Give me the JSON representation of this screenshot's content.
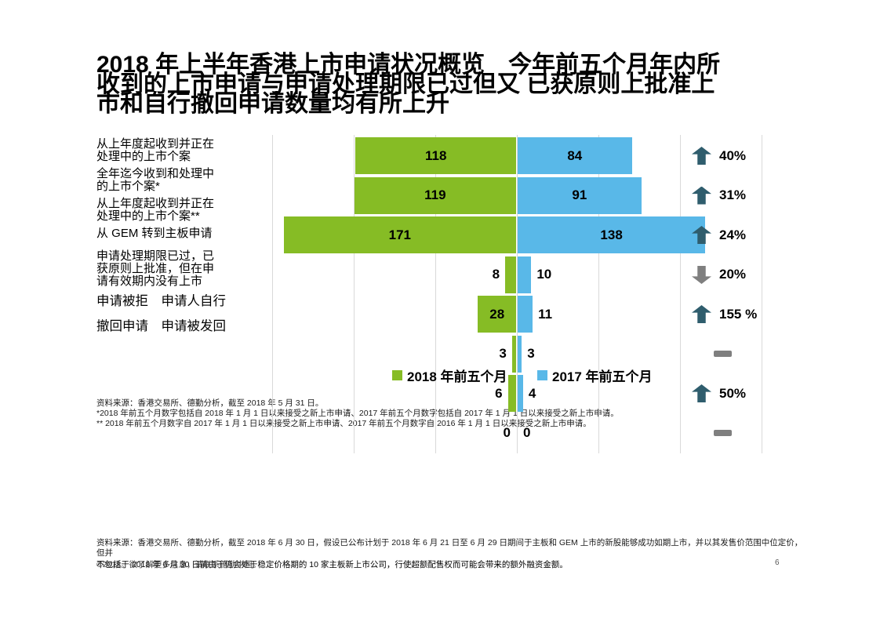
{
  "slide": {
    "title_lines": [
      "2018 年上半年香港上市申请状况概览　今年前五个月年内所",
      "收到的上市申请与申请处理期限已过但又 已获原则上批准上",
      "市和自行撤回申请数量均有所上升"
    ]
  },
  "chart_data": {
    "type": "bar",
    "orientation": "horizontal-diverging",
    "title": "2018 年上半年香港上市申请状况概览",
    "categories": [
      "从上年度起收到并正在处理中的上市个案",
      "全年迄今收到和处理中的上市个案*",
      "从上年度起收到并正在处理中的上市个案**",
      "从 GEM 转到主板申请",
      "申请处理期限已过，已获原则上批准，但在申请有效期内没有上市",
      "申请被拒",
      "申请人自行撤回申请",
      "申请被发回"
    ],
    "series": [
      {
        "name": "2018 年前五个月",
        "color": "#86BC25",
        "values": [
          118,
          119,
          171,
          8,
          28,
          3,
          6,
          0
        ]
      },
      {
        "name": "2017 年前五个月",
        "color": "#59B8E8",
        "values": [
          84,
          91,
          138,
          10,
          11,
          3,
          4,
          0
        ]
      }
    ],
    "axis": {
      "min": -180,
      "max": 180,
      "grid_step": 60,
      "gridlines": true,
      "tick_labels_visible": false
    },
    "legend_position": "overlay-center",
    "change_indicators": [
      {
        "direction": "up",
        "label": "40%"
      },
      {
        "direction": "up",
        "label": "31%"
      },
      {
        "direction": "up",
        "label": "24%"
      },
      {
        "direction": "down",
        "label": "20%"
      },
      {
        "direction": "up",
        "label": "155 %"
      },
      {
        "direction": "flat",
        "label": ""
      },
      {
        "direction": "up",
        "label": "50%"
      },
      {
        "direction": "flat",
        "label": ""
      }
    ]
  },
  "category_label_lines": [
    "从上年度起收到并正在",
    "处理中的上市个案",
    "全年迄今收到和处理中",
    "的上市个案*",
    "从上年度起收到并正在",
    "处理中的上市个案**",
    "从 GEM 转到主板申请",
    "申请处理期限已过，已",
    "获原则上批准，但在申",
    "请有效期内没有上市",
    "申请被拒　申请人自行",
    "撤回申请　申请被发回"
  ],
  "legend": {
    "items": [
      {
        "label": "2018 年前五个月",
        "color": "#86BC25"
      },
      {
        "label": "2017 年前五个月",
        "color": "#59B8E8"
      }
    ]
  },
  "chart_footnotes": [
    "资料来源：香港交易所、德勤分析，截至 2018 年 5 月 31 日。",
    "*2018 年前五个月数字包括自 2018 年 1 月 1 日以来接受之新上市申请、2017 年前五个月数字包括自 2017 年 1 月 1 日以来接受之新上市申请。",
    "** 2018 年前五个月数字自 2017 年 1 月 1 日以来接受之新上市申请、2017 年前五个月数字自 2016 年 1 月 1 日以来接受之新上市申请。"
  ],
  "footer": {
    "note": "资料来源：香港交易所、德勤分析，截至 2018 年 6 月 30 日，假设已公布计划于 2018 年 6 月 21 日至 6 月 29 日期间于主板和 GEM 上市的新股能够成功如期上市，并以其发售价范围中位定价，但并",
    "note2": "不包括于 2018 年 6 月 30 日前由于仍会处于稳定价格期的 10 家主板新上市公司，行使超额配售权而可能会带来的额外融资金额。",
    "copyright": "©2018。欲了解更多信息，请联系德勤中国。",
    "page_number": "6"
  }
}
